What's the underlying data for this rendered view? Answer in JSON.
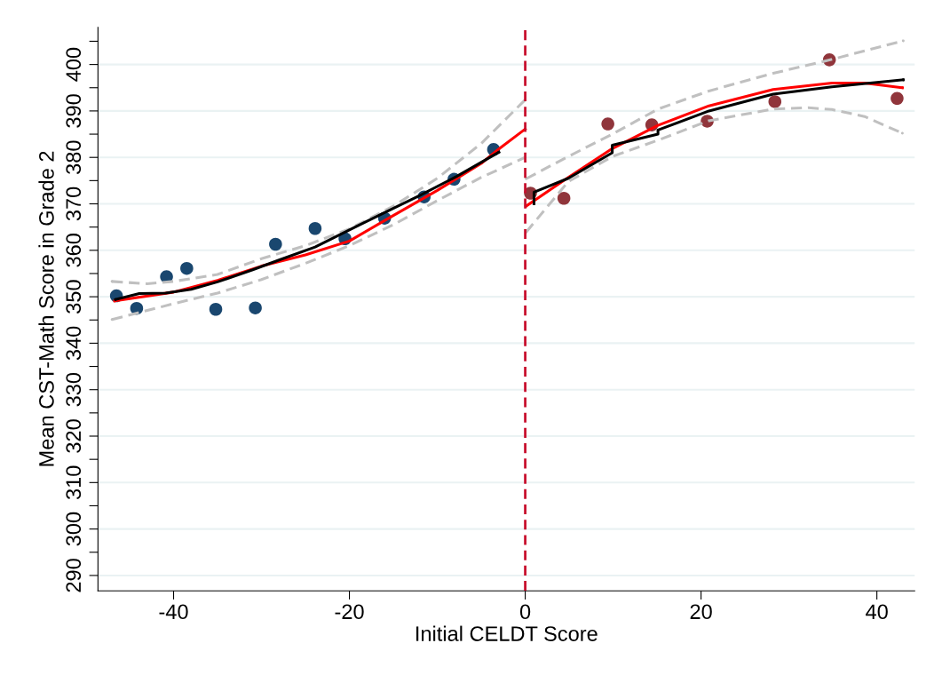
{
  "chart_data": {
    "type": "scatter",
    "xlabel": "Initial CELDT Score",
    "ylabel": "Mean CST-Math Score in Grade 2",
    "xlim": [
      -48.6,
      44.3
    ],
    "ylim": [
      286.7,
      408
    ],
    "xticks": [
      -40,
      -20,
      0,
      20,
      40
    ],
    "yticks": [
      290,
      {
        "value": 295,
        "label": null
      },
      300,
      {
        "value": 305,
        "label": null
      },
      310,
      {
        "value": 315,
        "label": null
      },
      320,
      {
        "value": 325,
        "label": null
      },
      330,
      {
        "value": 335,
        "label": null
      },
      340,
      {
        "value": 345,
        "label": null
      },
      350,
      {
        "value": 355,
        "label": null
      },
      360,
      {
        "value": 365,
        "label": null
      },
      370,
      {
        "value": 375,
        "label": null
      },
      380,
      {
        "value": 385,
        "label": null
      },
      390,
      {
        "value": 395,
        "label": null
      },
      400,
      {
        "value": 405,
        "label": null
      }
    ],
    "grid": "y",
    "ref_lines": [
      {
        "axis": "x",
        "value": 0,
        "color": "#c8102e",
        "line_style": "dashed"
      }
    ],
    "series": [
      {
        "type": "line",
        "color": "#c0c0c0",
        "line_style": "dashed",
        "x": [
          -47,
          -43,
          -40,
          -35,
          -30,
          -25,
          -20,
          -15,
          -10,
          -5,
          0
        ],
        "values": [
          353.3,
          352.8,
          353.3,
          354.8,
          358.2,
          361.0,
          364.6,
          369.5,
          375.5,
          383.0,
          392.4
        ]
      },
      {
        "type": "line",
        "color": "#c0c0c0",
        "line_style": "dashed",
        "x": [
          -47,
          -40,
          -35,
          -30,
          -25,
          -20,
          -15,
          -10,
          -5,
          0
        ],
        "values": [
          345.1,
          348.5,
          350.8,
          353.7,
          357.2,
          361.0,
          365.5,
          370.7,
          375.7,
          380.0
        ]
      },
      {
        "type": "line",
        "color": "#c0c0c0",
        "line_style": "dashed",
        "x": [
          0.1,
          4.9,
          9.9,
          15.1,
          20.9,
          28.2,
          34.9,
          43.0
        ],
        "values": [
          375.4,
          380.2,
          385.0,
          390.4,
          394.3,
          398.1,
          401.1,
          405.1
        ]
      },
      {
        "type": "line",
        "color": "#c0c0c0",
        "line_style": "dashed",
        "x": [
          0.1,
          4.9,
          9.9,
          15.1,
          20.9,
          28.2,
          32.2,
          34.9,
          38.6,
          42.9
        ],
        "values": [
          363.9,
          374.8,
          380.2,
          383.7,
          387.9,
          390.4,
          390.7,
          390.3,
          388.8,
          385.2
        ]
      },
      {
        "color": "#1a476f",
        "marker": "circle",
        "x": [
          -46.5,
          -44.2,
          -40.8,
          -38.5,
          -35.2,
          -30.7,
          -28.4,
          -23.9,
          -20.5,
          -16.0,
          -11.5,
          -8.1,
          -3.6
        ],
        "values": [
          350.2,
          347.5,
          354.3,
          356.1,
          347.3,
          347.6,
          361.3,
          364.7,
          362.5,
          366.9,
          371.5,
          375.3,
          381.7
        ]
      },
      {
        "color": "#90353b",
        "marker": "circle",
        "x": [
          0.6,
          4.4,
          9.4,
          14.4,
          20.7,
          28.4,
          34.6,
          42.3
        ],
        "values": [
          372.3,
          371.2,
          387.2,
          387.0,
          387.8,
          392.0,
          401.0,
          392.7
        ]
      },
      {
        "type": "line",
        "color": "#ff0000",
        "line_style": "solid",
        "x": [
          -46.7,
          -40,
          -35,
          -30,
          -25,
          -20,
          -15,
          -10,
          -5,
          -3,
          0
        ],
        "values": [
          349.1,
          351.0,
          353.5,
          356.6,
          359.0,
          362.0,
          367.5,
          372.9,
          378.7,
          381.8,
          386.1
        ]
      },
      {
        "type": "line",
        "color": "#ff0000",
        "line_style": "solid",
        "x": [
          0.1,
          4.9,
          9.9,
          15.1,
          20.9,
          28.2,
          34.9,
          38.6,
          42.9
        ],
        "values": [
          369.5,
          375.7,
          381.9,
          386.9,
          391.1,
          394.6,
          396.0,
          396.0,
          395.0
        ]
      },
      {
        "type": "line",
        "color": "#000000",
        "line_style": "solid",
        "x": [
          -46.6,
          -43.9,
          -40.9,
          -38.0,
          -35.0,
          -31.0,
          -28.0,
          -23.9,
          -20.0,
          -16.0,
          -11.9,
          -7.8,
          -3.0
        ],
        "values": [
          349.4,
          350.7,
          350.8,
          351.6,
          353.2,
          355.8,
          357.9,
          360.7,
          364.4,
          368.1,
          371.9,
          375.9,
          381.1
        ]
      },
      {
        "type": "line",
        "color": "#000000",
        "line_style": "solid",
        "x": [
          1.0,
          1.0,
          4.9,
          9.9,
          9.9,
          15.1,
          15.1,
          20.9,
          28.2,
          34.9,
          43.0
        ],
        "values": [
          370.0,
          372.5,
          375.5,
          381.0,
          382.6,
          385.0,
          385.9,
          390.0,
          393.6,
          395.2,
          396.7
        ]
      }
    ]
  }
}
